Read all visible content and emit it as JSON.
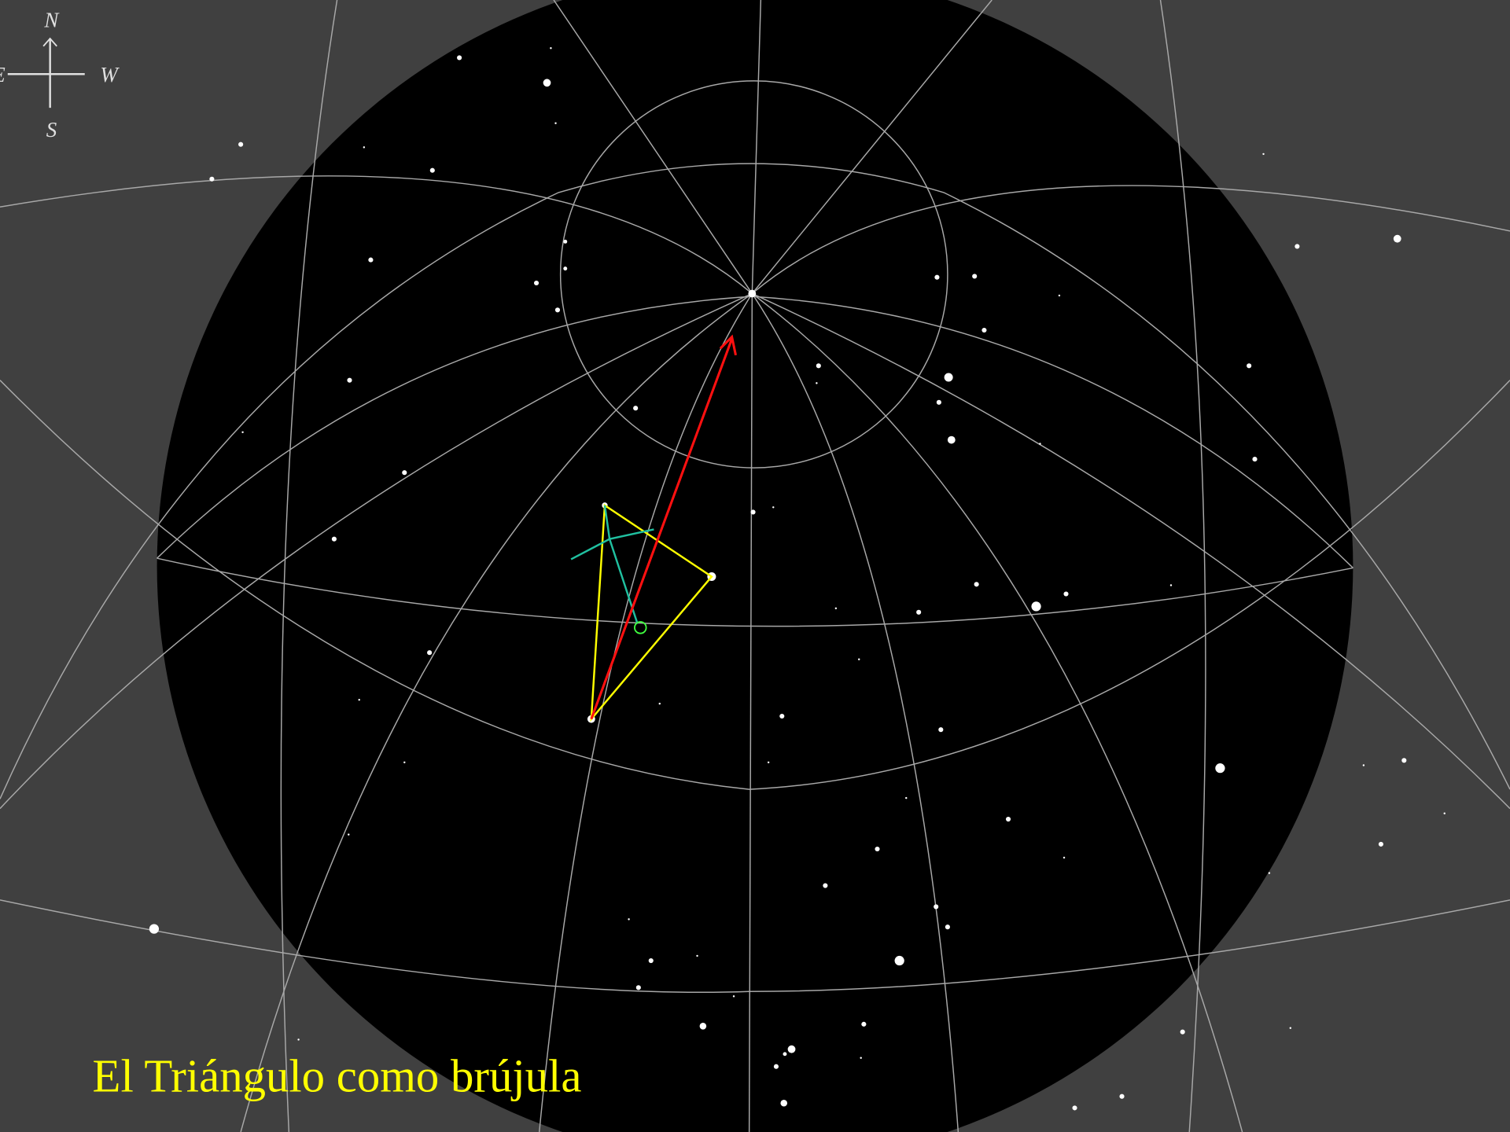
{
  "compass": {
    "north": "N",
    "west": "W",
    "east": "E",
    "south": "S"
  },
  "caption": "El Triángulo como brújula"
}
